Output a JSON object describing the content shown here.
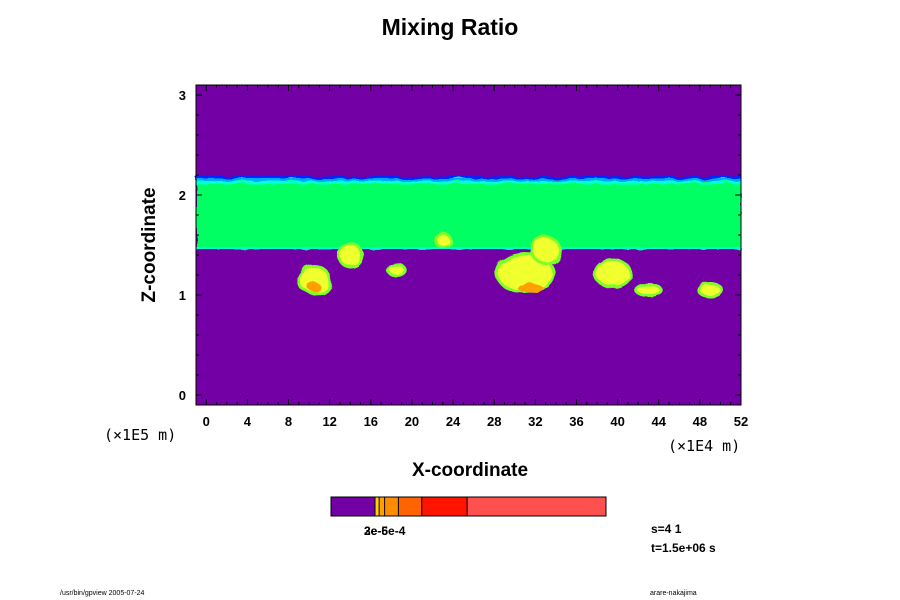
{
  "chart_data": {
    "type": "heatmap",
    "title": "Mixing Ratio",
    "xlabel": "X-coordinate",
    "ylabel": "Z-coordinate",
    "x_unit": "(×1E4 m)",
    "y_unit": "(×1E5 m)",
    "xlim": [
      -1,
      52
    ],
    "ylim": [
      -0.1,
      3.1
    ],
    "x_ticks": [
      "0",
      "4",
      "8",
      "12",
      "16",
      "20",
      "24",
      "28",
      "32",
      "36",
      "40",
      "44",
      "48",
      "52"
    ],
    "y_ticks": [
      "0",
      "1",
      "2",
      "3"
    ],
    "background_color": "#7300a4",
    "layer": {
      "z_bottom": 1.46,
      "z_top": 2.16,
      "color": "#00ff64"
    },
    "layer_top_edge_colors": [
      "#0028ff",
      "#00aaff",
      "#00ffd2"
    ],
    "blobs": [
      {
        "x": 10.5,
        "z": 1.15,
        "rx": 1.4,
        "rz": 0.12,
        "level": "yellow"
      },
      {
        "x": 10.5,
        "z": 1.08,
        "rx": 0.6,
        "rz": 0.05,
        "level": "orange"
      },
      {
        "x": 14.0,
        "z": 1.4,
        "rx": 1.0,
        "rz": 0.1,
        "level": "yellow"
      },
      {
        "x": 18.5,
        "z": 1.25,
        "rx": 0.7,
        "rz": 0.04,
        "level": "yellow"
      },
      {
        "x": 23.0,
        "z": 1.55,
        "rx": 0.6,
        "rz": 0.05,
        "level": "yellow"
      },
      {
        "x": 31.0,
        "z": 1.22,
        "rx": 2.6,
        "rz": 0.18,
        "level": "yellow"
      },
      {
        "x": 31.5,
        "z": 1.07,
        "rx": 1.2,
        "rz": 0.05,
        "level": "orange"
      },
      {
        "x": 33.0,
        "z": 1.45,
        "rx": 1.2,
        "rz": 0.12,
        "level": "yellow"
      },
      {
        "x": 39.5,
        "z": 1.22,
        "rx": 1.6,
        "rz": 0.12,
        "level": "yellow"
      },
      {
        "x": 43.0,
        "z": 1.05,
        "rx": 1.1,
        "rz": 0.04,
        "level": "yellow"
      },
      {
        "x": 49.0,
        "z": 1.05,
        "rx": 1.0,
        "rz": 0.05,
        "level": "yellow"
      }
    ],
    "colorbar": {
      "colors": [
        "#7300a4",
        "#ffd200",
        "#ffa000",
        "#ff8c00",
        "#ff6400",
        "#ff1400",
        "#ff5050",
        "#ff9696"
      ],
      "stops": [
        0,
        0.16,
        0.175,
        0.195,
        0.245,
        0.33,
        0.495,
        1
      ],
      "labels": "2e-5e-4",
      "label_overprint": "3e-6"
    },
    "info": {
      "line1": "s=4 1",
      "line2": "t=1.5e+06 s"
    },
    "footer_left": "/usr/bin/gpview 2005-07-24",
    "footer_right": "arare-nakajima"
  }
}
